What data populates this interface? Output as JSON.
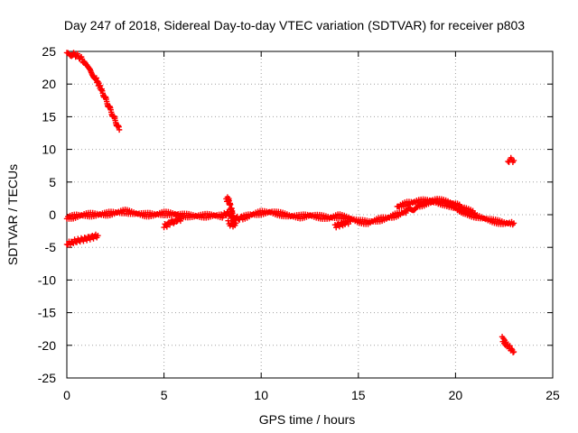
{
  "chart_data": {
    "type": "scatter",
    "title": "Day 247 of 2018, Sidereal Day-to-day VTEC variation (SDTVAR) for receiver p803",
    "xlabel": "GPS time / hours",
    "ylabel": "SDTVAR / TECUs",
    "xlim": [
      0,
      25
    ],
    "ylim": [
      -25,
      25
    ],
    "x_ticks": [
      0,
      5,
      10,
      15,
      20,
      25
    ],
    "y_ticks": [
      -25,
      -20,
      -15,
      -10,
      -5,
      0,
      5,
      10,
      15,
      20,
      25
    ],
    "grid": true,
    "color": "#ff0000",
    "series": [
      {
        "name": "descending-arc",
        "x": [
          0.0,
          0.3,
          0.6,
          0.9,
          1.2,
          1.5,
          1.8,
          2.1,
          2.4,
          2.7
        ],
        "y": [
          24.5,
          24.6,
          24.3,
          23.4,
          22.2,
          20.8,
          19.0,
          17.0,
          15.0,
          13.0
        ]
      },
      {
        "name": "early-low-arc",
        "x": [
          0.0,
          0.4,
          0.8,
          1.2,
          1.6
        ],
        "y": [
          -4.5,
          -4.1,
          -3.8,
          -3.5,
          -3.2
        ]
      },
      {
        "name": "main-band",
        "x": [
          0.0,
          0.5,
          1.0,
          1.5,
          2.0,
          2.5,
          3.0,
          3.5,
          4.0,
          4.5,
          5.0,
          5.5,
          6.0,
          6.5,
          7.0,
          7.5,
          8.0,
          8.3,
          8.6,
          9.0,
          9.5,
          10.0,
          10.5,
          11.0,
          11.5,
          12.0,
          12.5,
          13.0,
          13.5,
          14.0,
          14.5,
          15.0,
          15.5,
          16.0,
          16.5,
          17.0,
          17.5,
          18.0,
          18.5,
          19.0,
          19.5,
          20.0,
          20.5,
          21.0,
          21.5,
          22.0,
          22.5,
          23.0
        ],
        "y": [
          -0.5,
          -0.2,
          0.0,
          0.0,
          0.1,
          0.3,
          0.5,
          0.2,
          0.0,
          0.0,
          0.2,
          0.1,
          -0.1,
          -0.2,
          -0.2,
          -0.1,
          -0.2,
          0.3,
          -0.6,
          -0.5,
          0.0,
          0.3,
          0.4,
          0.1,
          -0.2,
          -0.3,
          -0.1,
          -0.3,
          -0.5,
          -0.2,
          -0.5,
          -1.0,
          -1.2,
          -0.8,
          -0.5,
          0.0,
          0.5,
          1.2,
          1.8,
          2.0,
          1.6,
          1.0,
          0.3,
          -0.2,
          -0.6,
          -1.0,
          -1.3,
          -1.3
        ]
      },
      {
        "name": "band-upper-trace",
        "x": [
          17.0,
          17.5,
          18.0,
          18.5,
          19.0,
          19.5,
          20.0,
          20.5,
          21.0
        ],
        "y": [
          1.2,
          1.7,
          2.0,
          2.1,
          2.2,
          2.0,
          1.6,
          0.8,
          0.2
        ]
      },
      {
        "name": "spike-near-8h",
        "x": [
          8.2,
          8.3,
          8.4,
          8.5,
          8.6
        ],
        "y": [
          2.2,
          2.5,
          1.5,
          0.5,
          -1.5
        ]
      },
      {
        "name": "dip-near-5h",
        "x": [
          5.0,
          5.3,
          5.6,
          5.9
        ],
        "y": [
          -1.8,
          -1.3,
          -0.9,
          -0.6
        ]
      },
      {
        "name": "dip-near-8h",
        "x": [
          8.3,
          8.5,
          8.7
        ],
        "y": [
          -1.2,
          -1.6,
          -1.3
        ]
      },
      {
        "name": "dip-near-14h",
        "x": [
          13.8,
          14.2,
          14.6
        ],
        "y": [
          -1.7,
          -1.4,
          -1.0
        ]
      },
      {
        "name": "isolated-upper-blip",
        "x": [
          22.7,
          22.85,
          23.0
        ],
        "y": [
          8.3,
          8.4,
          8.3
        ]
      },
      {
        "name": "late-low-arc",
        "x": [
          22.4,
          22.6,
          22.8,
          23.0
        ],
        "y": [
          -19.0,
          -19.8,
          -20.4,
          -21.0
        ]
      }
    ]
  }
}
